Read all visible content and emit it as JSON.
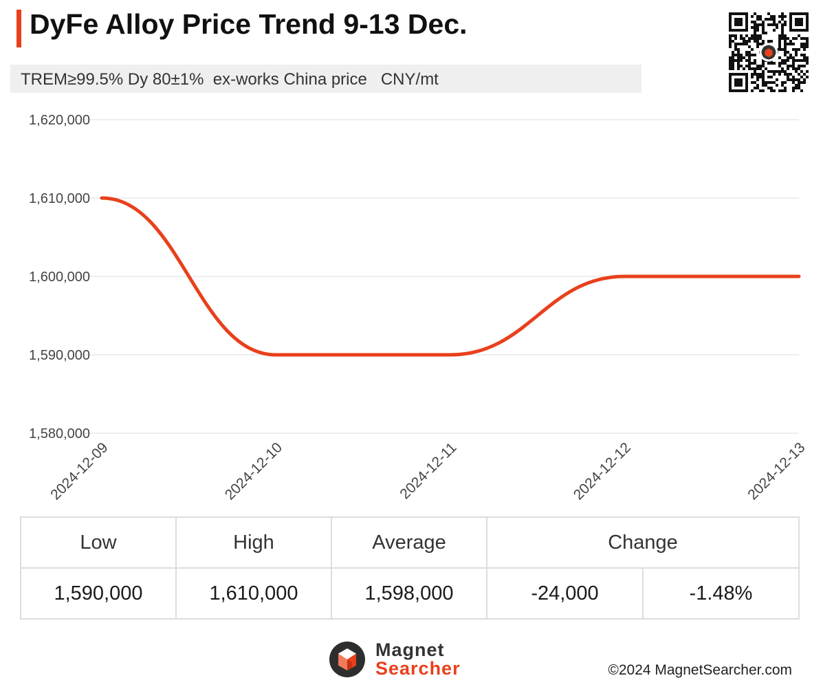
{
  "header": {
    "title": "DyFe Alloy Price Trend 9-13 Dec.",
    "subtitle": "TREM≥99.5% Dy 80±1%  ex-works China price   CNY/mt"
  },
  "chart_data": {
    "type": "line",
    "x": [
      "2024-12-09",
      "2024-12-10",
      "2024-12-11",
      "2024-12-12",
      "2024-12-13"
    ],
    "series": [
      {
        "values": [
          1610000,
          1590000,
          1590000,
          1600000,
          1600000
        ]
      }
    ],
    "ylim": [
      1580000,
      1620000
    ],
    "yticks": [
      1620000,
      1610000,
      1600000,
      1590000,
      1580000
    ],
    "ytick_labels": [
      "1,620,000",
      "1,610,000",
      "1,600,000",
      "1,590,000",
      "1,580,000"
    ],
    "grid": true,
    "line_color": "#e8401c",
    "smooth": true
  },
  "stats": {
    "headers": [
      "Low",
      "High",
      "Average",
      "Change"
    ],
    "low": "1,590,000",
    "high": "1,610,000",
    "average": "1,598,000",
    "change_abs": "-24,000",
    "change_pct": "-1.48%"
  },
  "footer": {
    "logo_line1": "Magnet",
    "logo_line2": "Searcher",
    "copyright": "©2024 MagnetSearcher.com"
  },
  "colors": {
    "accent": "#e8401c",
    "grid": "#dddddd",
    "subtitle_bg": "#efefef"
  }
}
